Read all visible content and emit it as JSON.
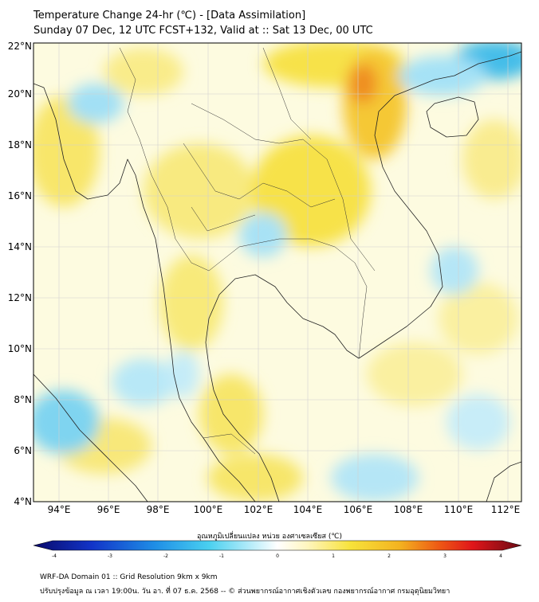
{
  "header": {
    "title": "Temperature Change 24-hr (℃) - [Data Assimilation]",
    "subtitle": "Sunday 07 Dec, 12 UTC FCST+132, Valid at :: Sat 13 Dec, 00 UTC"
  },
  "map": {
    "lat_range": [
      4,
      22
    ],
    "lon_range": [
      93,
      112.5
    ],
    "lat_ticks": [
      "4°N",
      "6°N",
      "8°N",
      "10°N",
      "12°N",
      "14°N",
      "16°N",
      "18°N",
      "20°N",
      "22°N"
    ],
    "lon_ticks": [
      "94°E",
      "96°E",
      "98°E",
      "100°E",
      "102°E",
      "104°E",
      "106°E",
      "108°E",
      "110°E",
      "112°E"
    ]
  },
  "colorbar": {
    "title": "อุณหภูมิเปลี่ยนแปลง หน่วย องศาเซลเซียส (℃)",
    "range": [
      -4,
      4
    ],
    "ticks": [
      "-4",
      "-3",
      "-2",
      "-1",
      "0",
      "1",
      "2",
      "3",
      "4"
    ]
  },
  "footer": {
    "line1": "WRF-DA Domain 01 :: Grid Resolution 9km x 9km",
    "line2": "ปรับปรุงข้อมูล ณ เวลา 19:00น. วัน อา. ที่ 07 ธ.ค. 2568 -- © ส่วนพยากรณ์อากาศเชิงตัวเลข กองพยากรณ์อากาศ กรมอุตุนิยมวิทยา"
  },
  "colors": {
    "warm": "#f7e23a",
    "hot": "#f08a1a",
    "cool": "#8fdcf3",
    "cold": "#3ab8ea",
    "neutral": "#fdfbdc"
  }
}
